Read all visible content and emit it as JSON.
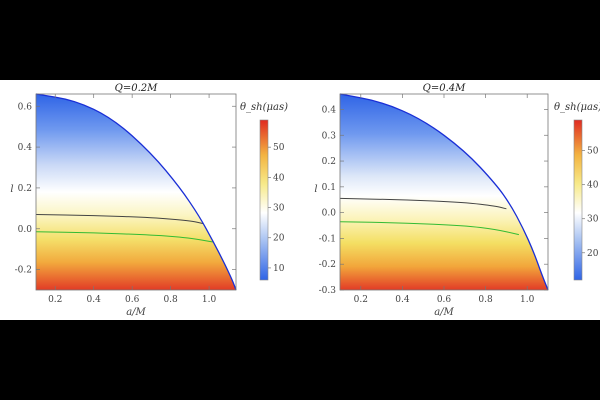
{
  "chart_data": [
    {
      "type": "heatmap",
      "title": "Q=0.2M",
      "xlabel": "a/M",
      "ylabel": "l",
      "xlim": [
        0.1,
        1.14
      ],
      "ylim": [
        -0.3,
        0.66
      ],
      "xticks": [
        0.2,
        0.4,
        0.6,
        0.8,
        1.0
      ],
      "xtick_labels": [
        "0.2",
        "0.4",
        "0.6",
        "0.8",
        "1.0"
      ],
      "yticks": [
        -0.2,
        0.0,
        0.2,
        0.4,
        0.6
      ],
      "ytick_labels": [
        "-0.2",
        "0.0",
        "0.2",
        "0.4",
        "0.6"
      ],
      "boundary": {
        "a": [
          0.1,
          0.3,
          0.5,
          0.7,
          0.85,
          0.95,
          1.02,
          1.08,
          1.12,
          1.14
        ],
        "l": [
          0.66,
          0.63,
          0.54,
          0.37,
          0.2,
          0.06,
          -0.06,
          -0.17,
          -0.25,
          -0.3
        ]
      },
      "colorbar": {
        "title": "θ_sh(μas)",
        "ticks": [
          10,
          20,
          30,
          40,
          50
        ],
        "tick_labels": [
          "10",
          "20",
          "30",
          "40",
          "50"
        ],
        "range": [
          6,
          59
        ]
      },
      "contours": [
        {
          "name": "black",
          "color": "#444444",
          "a": [
            0.1,
            0.4,
            0.7,
            0.9,
            0.97
          ],
          "l": [
            0.07,
            0.065,
            0.055,
            0.04,
            0.025
          ]
        },
        {
          "name": "green",
          "color": "#33bb33",
          "a": [
            0.1,
            0.4,
            0.7,
            0.9,
            1.02
          ],
          "l": [
            -0.015,
            -0.02,
            -0.03,
            -0.045,
            -0.065
          ]
        }
      ]
    },
    {
      "type": "heatmap",
      "title": "Q=0.4M",
      "xlabel": "a/M",
      "ylabel": "l",
      "xlim": [
        0.1,
        1.1
      ],
      "ylim": [
        -0.3,
        0.46
      ],
      "xticks": [
        0.2,
        0.4,
        0.6,
        0.8,
        1.0
      ],
      "xtick_labels": [
        "0.2",
        "0.4",
        "0.6",
        "0.8",
        "1.0"
      ],
      "yticks": [
        -0.3,
        -0.2,
        -0.1,
        0.0,
        0.1,
        0.2,
        0.3,
        0.4
      ],
      "ytick_labels": [
        "-0.3",
        "-0.2",
        "-0.1",
        "0.0",
        "0.1",
        "0.2",
        "0.3",
        "0.4"
      ],
      "boundary": {
        "a": [
          0.1,
          0.3,
          0.5,
          0.7,
          0.85,
          0.92,
          0.98,
          1.03,
          1.07,
          1.1
        ],
        "l": [
          0.46,
          0.43,
          0.36,
          0.24,
          0.11,
          0.03,
          -0.06,
          -0.15,
          -0.24,
          -0.3
        ]
      },
      "colorbar": {
        "title": "θ_sh(μas)",
        "ticks": [
          20,
          30,
          40,
          50
        ],
        "tick_labels": [
          "20",
          "30",
          "40",
          "50"
        ],
        "range": [
          12,
          59
        ]
      },
      "contours": [
        {
          "name": "black",
          "color": "#444444",
          "a": [
            0.1,
            0.4,
            0.7,
            0.85,
            0.9
          ],
          "l": [
            0.055,
            0.05,
            0.04,
            0.025,
            0.015
          ]
        },
        {
          "name": "green",
          "color": "#33bb33",
          "a": [
            0.1,
            0.4,
            0.7,
            0.85,
            0.96
          ],
          "l": [
            -0.035,
            -0.04,
            -0.05,
            -0.065,
            -0.085
          ]
        }
      ]
    }
  ]
}
